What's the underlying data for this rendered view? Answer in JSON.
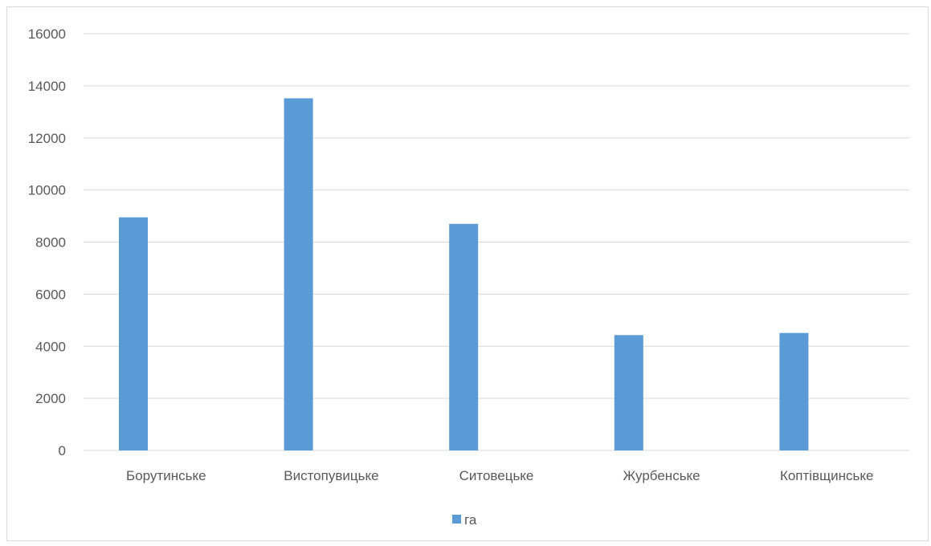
{
  "chart_data": {
    "type": "bar",
    "categories": [
      "Борутинське",
      "Вистопувицьке",
      "Ситовецьке",
      "Журбенське",
      "Коптівщинське"
    ],
    "series": [
      {
        "name": "га",
        "values": [
          8950,
          13520,
          8700,
          4430,
          4510
        ],
        "color": "#5b9bd5"
      }
    ],
    "ylim": [
      0,
      16000
    ],
    "yticks": [
      "0",
      "2000",
      "4000",
      "6000",
      "8000",
      "10000",
      "12000",
      "14000",
      "16000"
    ],
    "grid": true,
    "legend_position": "bottom"
  }
}
